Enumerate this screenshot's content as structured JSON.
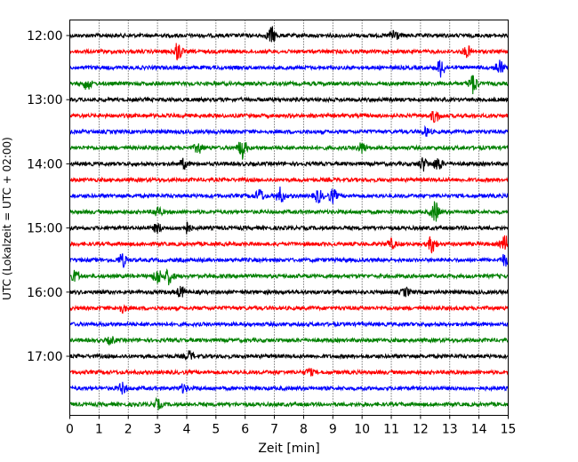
{
  "chart_data": {
    "type": "line",
    "title": "",
    "xlabel": "Zeit  [min]",
    "ylabel": "UTC (Lokalzeit = UTC + 02:00)",
    "xlim": [
      0,
      15
    ],
    "x_ticks": [
      "0",
      "1",
      "2",
      "3",
      "4",
      "5",
      "6",
      "7",
      "8",
      "9",
      "10",
      "11",
      "12",
      "13",
      "14",
      "15"
    ],
    "y_tick_labels": [
      "12:00",
      "13:00",
      "14:00",
      "15:00",
      "16:00",
      "17:00"
    ],
    "row_minutes": 15,
    "grid": "vertical-dotted",
    "row_colors": [
      "#000000",
      "#ff0000",
      "#0000ff",
      "#008000"
    ],
    "rows": [
      {
        "start": "12:00",
        "color": "#000000",
        "events": [
          [
            6.9,
            1.3
          ],
          [
            11.1,
            1.1
          ]
        ]
      },
      {
        "start": "12:15",
        "color": "#ff0000",
        "events": [
          [
            3.7,
            1.4
          ],
          [
            13.6,
            0.8
          ]
        ]
      },
      {
        "start": "12:30",
        "color": "#0000ff",
        "events": [
          [
            12.7,
            1.4
          ],
          [
            14.7,
            1.2
          ]
        ]
      },
      {
        "start": "12:45",
        "color": "#008000",
        "events": [
          [
            0.6,
            0.9
          ],
          [
            13.8,
            1.5
          ]
        ]
      },
      {
        "start": "13:00",
        "color": "#000000",
        "events": []
      },
      {
        "start": "13:15",
        "color": "#ff0000",
        "events": [
          [
            12.5,
            1.0
          ]
        ]
      },
      {
        "start": "13:30",
        "color": "#0000ff",
        "events": [
          [
            12.2,
            0.6
          ]
        ]
      },
      {
        "start": "13:45",
        "color": "#008000",
        "events": [
          [
            4.4,
            0.8
          ],
          [
            5.9,
            1.6
          ],
          [
            10.0,
            0.8
          ]
        ]
      },
      {
        "start": "14:00",
        "color": "#000000",
        "events": [
          [
            3.9,
            0.7
          ],
          [
            12.1,
            1.0
          ],
          [
            12.6,
            1.0
          ]
        ]
      },
      {
        "start": "14:15",
        "color": "#ff0000",
        "events": []
      },
      {
        "start": "14:30",
        "color": "#0000ff",
        "events": [
          [
            6.5,
            1.0
          ],
          [
            7.2,
            1.2
          ],
          [
            8.5,
            1.0
          ],
          [
            9.0,
            1.0
          ]
        ]
      },
      {
        "start": "14:45",
        "color": "#008000",
        "events": [
          [
            3.0,
            0.8
          ],
          [
            12.5,
            1.6
          ]
        ]
      },
      {
        "start": "15:00",
        "color": "#000000",
        "events": [
          [
            3.0,
            0.7
          ],
          [
            4.0,
            0.9
          ]
        ]
      },
      {
        "start": "15:15",
        "color": "#ff0000",
        "events": [
          [
            11.0,
            0.7
          ],
          [
            12.4,
            1.3
          ],
          [
            14.9,
            1.2
          ]
        ]
      },
      {
        "start": "15:30",
        "color": "#0000ff",
        "events": [
          [
            1.8,
            1.0
          ],
          [
            14.9,
            0.9
          ]
        ]
      },
      {
        "start": "15:45",
        "color": "#008000",
        "events": [
          [
            0.2,
            0.9
          ],
          [
            3.0,
            1.2
          ],
          [
            3.4,
            1.2
          ]
        ]
      },
      {
        "start": "16:00",
        "color": "#000000",
        "events": [
          [
            3.8,
            0.8
          ],
          [
            11.5,
            0.6
          ]
        ]
      },
      {
        "start": "16:15",
        "color": "#ff0000",
        "events": [
          [
            1.8,
            0.6
          ]
        ]
      },
      {
        "start": "16:30",
        "color": "#0000ff",
        "events": []
      },
      {
        "start": "16:45",
        "color": "#008000",
        "events": [
          [
            1.4,
            0.5
          ]
        ]
      },
      {
        "start": "17:00",
        "color": "#000000",
        "events": [
          [
            4.1,
            0.7
          ]
        ]
      },
      {
        "start": "17:15",
        "color": "#ff0000",
        "events": [
          [
            8.2,
            0.5
          ]
        ]
      },
      {
        "start": "17:30",
        "color": "#0000ff",
        "events": [
          [
            1.8,
            0.8
          ],
          [
            3.9,
            0.6
          ]
        ]
      },
      {
        "start": "17:45",
        "color": "#008000",
        "events": [
          [
            3.0,
            0.7
          ]
        ]
      }
    ]
  }
}
